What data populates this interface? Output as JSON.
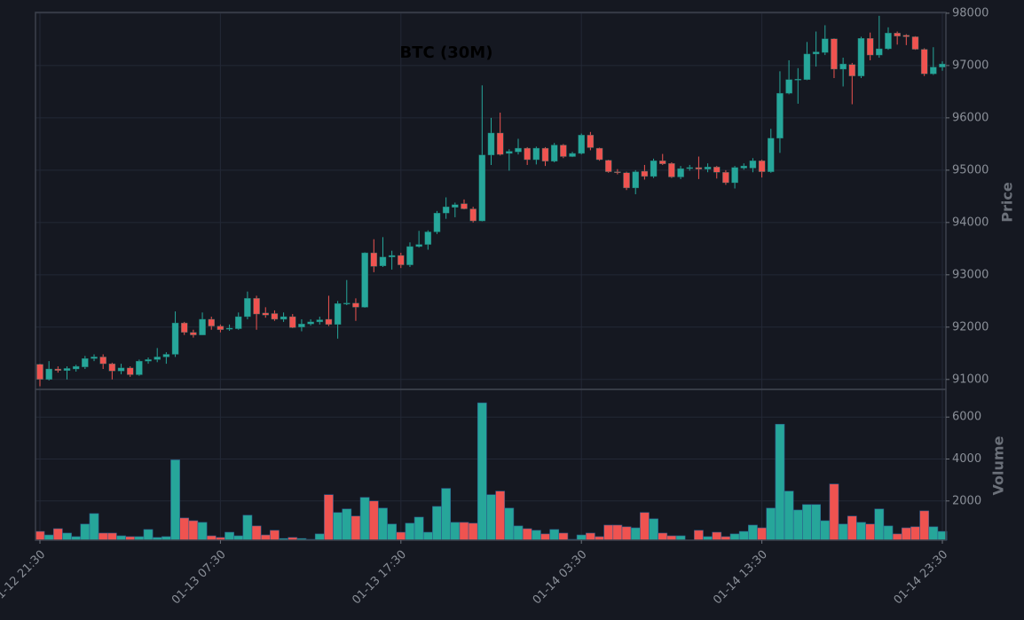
{
  "chart_data": {
    "type": "candlestick",
    "title": "BTC (30M)",
    "ylabel": "Price",
    "volume_label": "Volume",
    "categories": [
      "01-12 21:30",
      null,
      null,
      null,
      null,
      null,
      null,
      null,
      null,
      null,
      null,
      null,
      null,
      null,
      null,
      null,
      null,
      null,
      null,
      null,
      "01-13 07:30",
      null,
      null,
      null,
      null,
      null,
      null,
      null,
      null,
      null,
      null,
      null,
      null,
      null,
      null,
      null,
      null,
      null,
      null,
      null,
      "01-13 17:30",
      null,
      null,
      null,
      null,
      null,
      null,
      null,
      null,
      null,
      null,
      null,
      null,
      null,
      null,
      null,
      null,
      null,
      null,
      null,
      "01-14 03:30",
      null,
      null,
      null,
      null,
      null,
      null,
      null,
      null,
      null,
      null,
      null,
      null,
      null,
      null,
      null,
      null,
      null,
      null,
      null,
      "01-14 13:30",
      null,
      null,
      null,
      null,
      null,
      null,
      null,
      null,
      null,
      null,
      null,
      null,
      null,
      null,
      null,
      null,
      null,
      null,
      null,
      "01-14 23:30"
    ],
    "open": [
      91290,
      91000,
      91200,
      91170,
      91200,
      91240,
      91400,
      91430,
      91300,
      91160,
      91220,
      91090,
      91350,
      91380,
      91430,
      91480,
      92080,
      91900,
      91850,
      92150,
      92020,
      91960,
      91970,
      92200,
      92550,
      92270,
      92260,
      92150,
      92200,
      92000,
      92060,
      92100,
      92150,
      92050,
      92440,
      92460,
      92380,
      93420,
      93170,
      93340,
      93370,
      93190,
      93540,
      93580,
      93820,
      94180,
      94290,
      94360,
      94260,
      94030,
      95290,
      95710,
      95320,
      95350,
      95420,
      95200,
      95420,
      95170,
      95480,
      95260,
      95320,
      95670,
      95420,
      95190,
      94970,
      94950,
      94660,
      94980,
      94880,
      95180,
      95130,
      94870,
      95030,
      95050,
      95020,
      95060,
      94960,
      94760,
      95040,
      95040,
      95180,
      94970,
      95610,
      96470,
      96720,
      96730,
      97220,
      97250,
      97510,
      96930,
      97020,
      96800,
      97520,
      97200,
      97320,
      97620,
      97580,
      97550,
      97310,
      96840,
      96970
    ],
    "high": [
      91300,
      91350,
      91250,
      91250,
      91280,
      91450,
      91480,
      91480,
      91320,
      91300,
      91250,
      91380,
      91420,
      91600,
      91520,
      92300,
      92100,
      91950,
      92280,
      92200,
      92050,
      92050,
      92280,
      92680,
      92600,
      92380,
      92320,
      92280,
      92250,
      92150,
      92150,
      92200,
      92600,
      92500,
      92900,
      92550,
      93430,
      93680,
      93720,
      93460,
      93420,
      93620,
      93840,
      93850,
      94220,
      94480,
      94380,
      94440,
      94300,
      96620,
      96000,
      96100,
      95400,
      95600,
      95440,
      95450,
      95440,
      95520,
      95500,
      95350,
      95700,
      95730,
      95430,
      95200,
      95020,
      94970,
      95000,
      95100,
      95220,
      95310,
      95150,
      95080,
      95100,
      95260,
      95130,
      95080,
      95000,
      95080,
      95130,
      95230,
      95200,
      95790,
      96890,
      97100,
      96950,
      97450,
      97650,
      97770,
      97520,
      97150,
      97050,
      97550,
      97630,
      97950,
      97730,
      97650,
      97600,
      97560,
      97330,
      97350,
      97080
    ],
    "low": [
      90870,
      90980,
      91130,
      91000,
      91150,
      91200,
      91350,
      91200,
      91000,
      91100,
      91050,
      91070,
      91300,
      91330,
      91300,
      91430,
      91850,
      91800,
      91850,
      91950,
      91900,
      91930,
      91950,
      92150,
      91950,
      92180,
      92120,
      92100,
      91980,
      91920,
      92030,
      92050,
      92020,
      91780,
      92420,
      92120,
      92370,
      93050,
      93150,
      93100,
      93130,
      93150,
      93520,
      93480,
      93780,
      94070,
      94100,
      94250,
      94000,
      94020,
      95100,
      95280,
      94990,
      95300,
      95100,
      95110,
      95080,
      95150,
      95230,
      95250,
      95300,
      95380,
      95180,
      94950,
      94920,
      94620,
      94540,
      94820,
      94850,
      95100,
      94850,
      94830,
      94990,
      94830,
      94960,
      94840,
      94720,
      94650,
      95010,
      94960,
      94860,
      94950,
      95330,
      96450,
      96270,
      96720,
      96980,
      97200,
      96760,
      96600,
      96260,
      96760,
      97100,
      97150,
      97300,
      97400,
      97390,
      97300,
      96800,
      96820,
      96900
    ],
    "close": [
      91000,
      91200,
      91170,
      91210,
      91250,
      91400,
      91430,
      91300,
      91160,
      91220,
      91090,
      91350,
      91380,
      91430,
      91480,
      92080,
      91900,
      91850,
      92150,
      92020,
      91950,
      91980,
      92200,
      92550,
      92250,
      92230,
      92150,
      92200,
      91990,
      92060,
      92100,
      92140,
      92050,
      92450,
      92460,
      92380,
      93420,
      93160,
      93340,
      93370,
      93190,
      93540,
      93580,
      93820,
      94180,
      94300,
      94340,
      94260,
      94030,
      95290,
      95710,
      95300,
      95360,
      95420,
      95200,
      95420,
      95170,
      95480,
      95260,
      95320,
      95670,
      95430,
      95200,
      94970,
      94950,
      94660,
      94970,
      94880,
      95180,
      95120,
      94870,
      95030,
      95050,
      95020,
      95060,
      94960,
      94760,
      95050,
      95080,
      95180,
      94970,
      95610,
      96470,
      96730,
      96740,
      97220,
      97260,
      97510,
      96930,
      97030,
      96800,
      97520,
      97200,
      97320,
      97620,
      97560,
      97550,
      97310,
      96840,
      96970,
      97030
    ],
    "volume": [
      550,
      380,
      680,
      470,
      300,
      900,
      1400,
      470,
      470,
      340,
      300,
      300,
      640,
      260,
      300,
      3960,
      1190,
      1060,
      980,
      340,
      260,
      510,
      340,
      1320,
      810,
      380,
      600,
      210,
      260,
      210,
      170,
      430,
      2300,
      1450,
      1620,
      1280,
      2170,
      2000,
      1660,
      900,
      510,
      940,
      1230,
      510,
      1740,
      2600,
      980,
      980,
      940,
      6680,
      2300,
      2470,
      1660,
      810,
      680,
      600,
      430,
      640,
      470,
      170,
      380,
      470,
      300,
      850,
      850,
      770,
      720,
      1450,
      1150,
      470,
      340,
      340,
      130,
      600,
      300,
      510,
      300,
      430,
      550,
      850,
      720,
      1660,
      5660,
      2470,
      1570,
      1830,
      1830,
      1060,
      2810,
      900,
      1280,
      980,
      900,
      1620,
      810,
      430,
      720,
      770,
      1530,
      770,
      550
    ],
    "colors": {
      "up": "#26a69a",
      "down": "#ef5350"
    },
    "ylim": [
      90810,
      98015
    ],
    "yticks": [
      91000,
      92000,
      93000,
      94000,
      95000,
      96000,
      97000,
      98000
    ],
    "volume_ylim": [
      130,
      7320
    ],
    "volume_yticks": [
      2000,
      4000,
      6000
    ],
    "grid": true
  }
}
